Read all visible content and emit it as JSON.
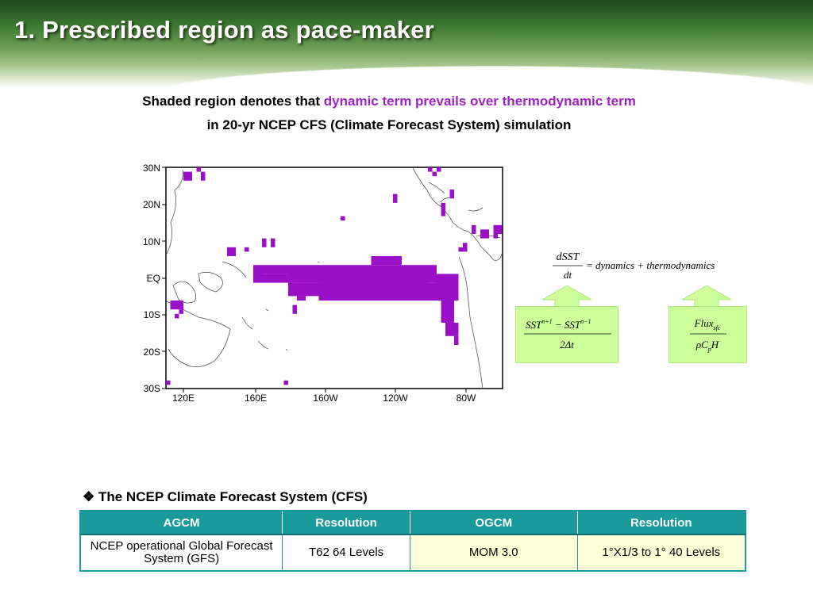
{
  "slide_title": "1. Prescribed region as pace-maker",
  "subtitle": {
    "line1_prefix": "Shaded region denotes that ",
    "line1_accent": "dynamic term prevails over thermodynamic term",
    "line2": "in 20-yr NCEP CFS (Climate Forecast System) simulation"
  },
  "map": {
    "lat_labels": [
      "30N",
      "20N",
      "10N",
      "EQ",
      "10S",
      "20S",
      "30S"
    ],
    "lon_labels": [
      "120E",
      "160E",
      "160W",
      "120W",
      "80W"
    ],
    "shade_color": "#9a10c8"
  },
  "equation": {
    "lhs_num": "dSST",
    "lhs_den": "dt",
    "rhs": "= dynamics + thermodynamics",
    "box1_num": "SST",
    "box1_num_sup1": "n+1",
    "box1_minus": " − SST",
    "box1_num_sup2": "n−1",
    "box1_den": "2Δt",
    "box2_num": "Flux",
    "box2_num_sub": "sfc",
    "box2_den": "ρC",
    "box2_den_sub": "p",
    "box2_den_tail": "H",
    "box_color": "#ccff99"
  },
  "cfs": {
    "heading": "The NCEP Climate Forecast System (CFS)",
    "headers": [
      "AGCM",
      "Resolution",
      "OGCM",
      "Resolution"
    ],
    "row": [
      "NCEP operational Global Forecast System (GFS)",
      "T62 64 Levels",
      "MOM 3.0",
      "1°X1/3 to 1° 40 Levels"
    ],
    "header_color": "#1a9a9a"
  }
}
